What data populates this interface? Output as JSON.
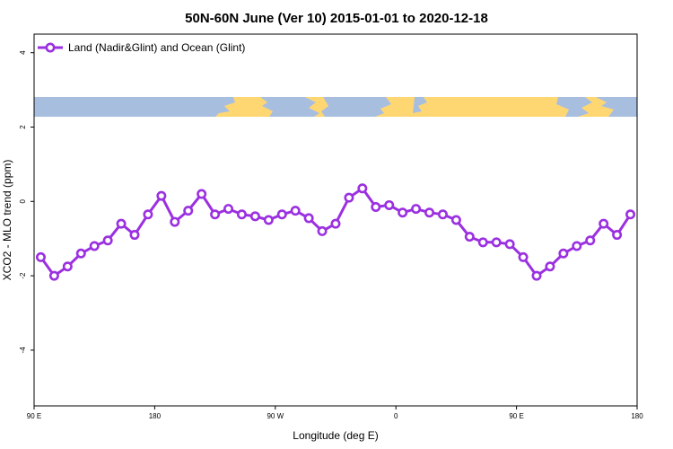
{
  "chart_data": {
    "type": "line",
    "title": "50N-60N June (Ver 10)   2015-01-01 to 2020-12-18",
    "xlabel": "Longitude (deg E)",
    "ylabel": "XCO2 - MLO trend (ppm)",
    "xlim": [
      90,
      540
    ],
    "ylim": [
      -5.5,
      4.5
    ],
    "x_ticks": [
      {
        "value": 90,
        "label": "90 E"
      },
      {
        "value": 180,
        "label": "180"
      },
      {
        "value": 270,
        "label": "90 W"
      },
      {
        "value": 360,
        "label": "0"
      },
      {
        "value": 450,
        "label": "90 E"
      },
      {
        "value": 540,
        "label": "180"
      }
    ],
    "y_ticks": [
      {
        "value": 4,
        "label": "4"
      },
      {
        "value": 2,
        "label": "2"
      },
      {
        "value": 0,
        "label": "0"
      },
      {
        "value": -2,
        "label": "-2"
      },
      {
        "value": -4,
        "label": "-4"
      }
    ],
    "legend": {
      "placement": "top-left"
    },
    "series": [
      {
        "name": "Land (Nadir&Glint) and Ocean (Glint)",
        "color": "#9b30e0",
        "x": [
          95,
          105,
          115,
          125,
          135,
          145,
          155,
          165,
          175,
          185,
          195,
          205,
          215,
          225,
          235,
          245,
          255,
          265,
          275,
          285,
          295,
          305,
          315,
          325,
          335,
          345,
          355,
          365,
          375,
          385,
          395,
          405,
          415,
          425,
          435,
          445,
          455,
          465,
          475,
          485,
          495,
          505,
          515,
          525,
          535
        ],
        "values": [
          -1.5,
          -2.0,
          -1.75,
          -1.4,
          -1.2,
          -1.05,
          -0.6,
          -0.9,
          -0.35,
          0.15,
          -0.55,
          -0.25,
          0.2,
          -0.35,
          -0.2,
          -0.35,
          -0.4,
          -0.5,
          -0.35,
          -0.25,
          -0.45,
          -0.8,
          -0.6,
          0.1,
          0.35,
          -0.15,
          -0.1,
          -0.3,
          -0.2,
          -0.3,
          -0.35,
          -0.5,
          -0.95,
          -1.1,
          -1.1,
          -1.15,
          -1.5,
          -2.0,
          -1.75,
          -1.4,
          -1.2,
          -1.05,
          -0.6,
          -0.9,
          -0.35
        ]
      }
    ]
  },
  "colors": {
    "series_line": "#9b30e0",
    "map_land": "#ffd772",
    "map_ocean": "#a8bedf",
    "axes": "#000000",
    "background": "#ffffff"
  }
}
